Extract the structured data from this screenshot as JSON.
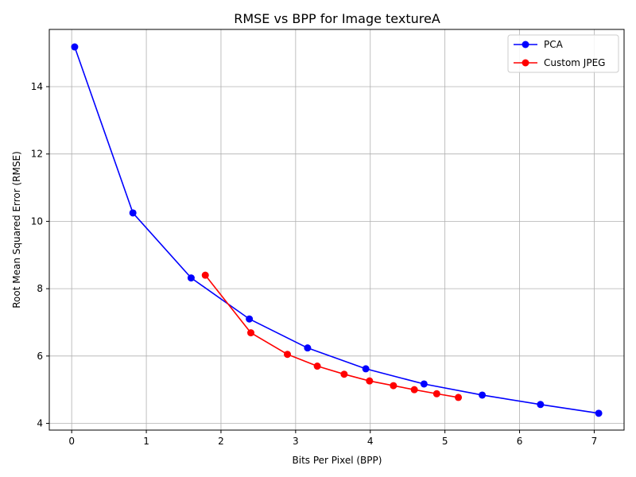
{
  "chart_data": {
    "type": "line",
    "title": "RMSE vs BPP for Image textureA",
    "xlabel": "Bits Per Pixel (BPP)",
    "ylabel": "Root Mean Squared Error (RMSE)",
    "xlim": [
      -0.3,
      7.4
    ],
    "ylim": [
      3.8,
      15.7
    ],
    "xticks": [
      0,
      1,
      2,
      3,
      4,
      5,
      6,
      7
    ],
    "yticks": [
      4,
      6,
      8,
      10,
      12,
      14
    ],
    "grid": true,
    "legend_position": "top-right",
    "series": [
      {
        "name": "PCA",
        "color": "#0000ff",
        "marker": "circle",
        "x": [
          0.04,
          0.82,
          1.6,
          2.38,
          3.16,
          3.94,
          4.72,
          5.5,
          6.28,
          7.06
        ],
        "y": [
          15.18,
          10.25,
          8.32,
          7.1,
          6.24,
          5.62,
          5.17,
          4.84,
          4.56,
          4.3
        ]
      },
      {
        "name": "Custom JPEG",
        "color": "#ff0000",
        "marker": "circle",
        "x": [
          1.79,
          2.4,
          2.89,
          3.29,
          3.65,
          3.99,
          4.31,
          4.59,
          4.89,
          5.18
        ],
        "y": [
          8.4,
          6.69,
          6.05,
          5.7,
          5.46,
          5.26,
          5.12,
          5.0,
          4.88,
          4.77
        ]
      }
    ]
  }
}
